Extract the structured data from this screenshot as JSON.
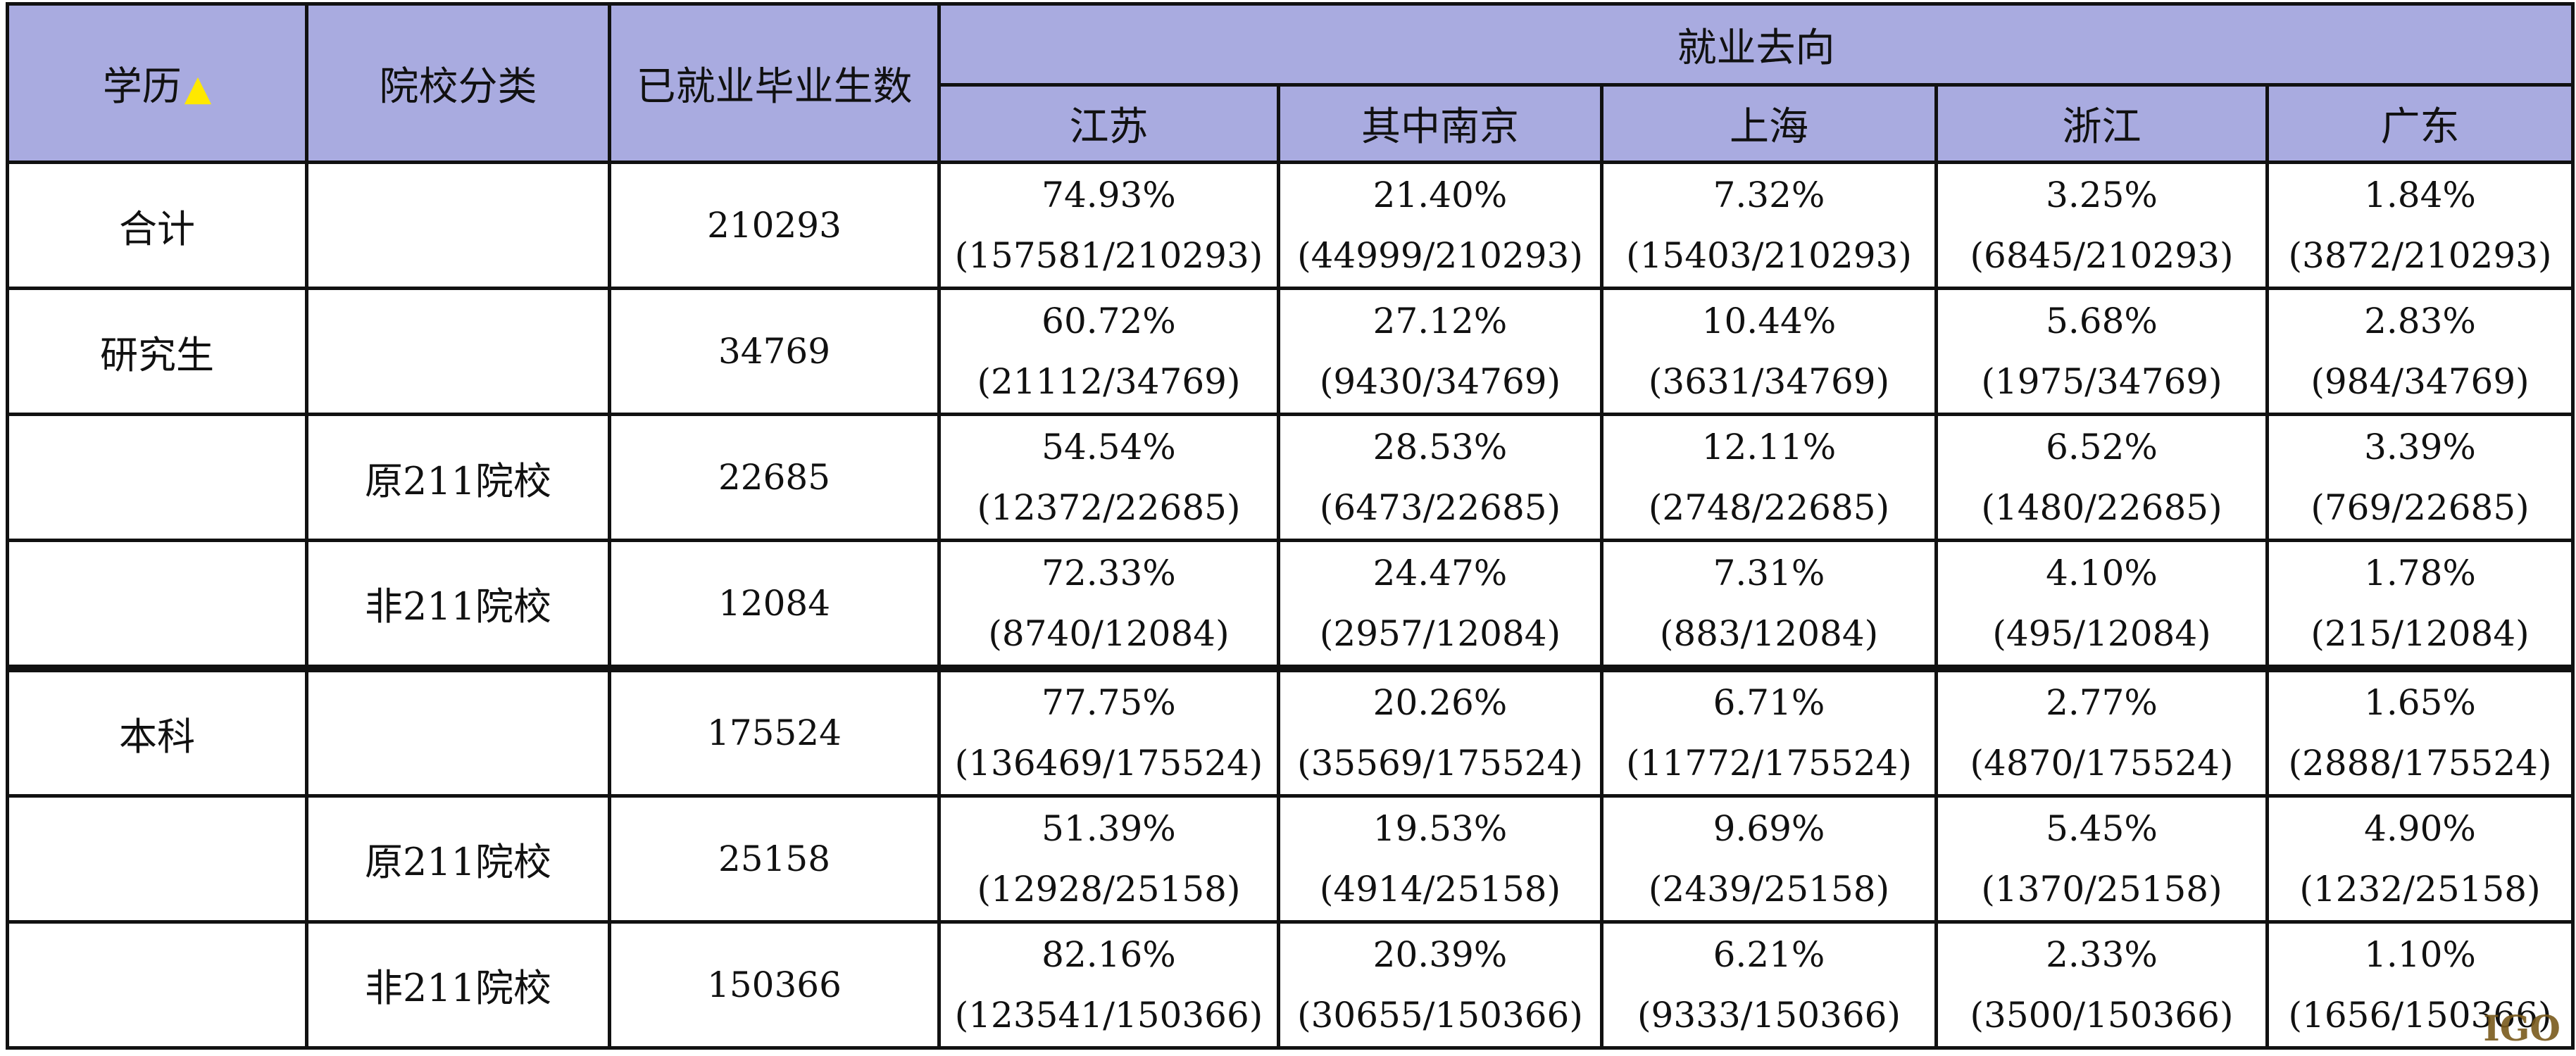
{
  "header": {
    "education": "学历",
    "education_marker": "▲",
    "school_type": "院校分类",
    "employed_count": "已就业毕业生数",
    "destination_group": "就业去向",
    "destinations": [
      "江苏",
      "其中南京",
      "上海",
      "浙江",
      "广东"
    ]
  },
  "rows": [
    {
      "education": "合计",
      "school_type": "",
      "count": "210293",
      "cells": [
        {
          "pct": "74.93%",
          "ratio": "(157581/210293)"
        },
        {
          "pct": "21.40%",
          "ratio": "(44999/210293)"
        },
        {
          "pct": "7.32%",
          "ratio": "(15403/210293)"
        },
        {
          "pct": "3.25%",
          "ratio": "(6845/210293)"
        },
        {
          "pct": "1.84%",
          "ratio": "(3872/210293)"
        }
      ]
    },
    {
      "education": "研究生",
      "school_type": "",
      "count": "34769",
      "cells": [
        {
          "pct": "60.72%",
          "ratio": "(21112/34769)"
        },
        {
          "pct": "27.12%",
          "ratio": "(9430/34769)"
        },
        {
          "pct": "10.44%",
          "ratio": "(3631/34769)"
        },
        {
          "pct": "5.68%",
          "ratio": "(1975/34769)"
        },
        {
          "pct": "2.83%",
          "ratio": "(984/34769)"
        }
      ]
    },
    {
      "education": "",
      "school_type": "原211院校",
      "count": "22685",
      "cells": [
        {
          "pct": "54.54%",
          "ratio": "(12372/22685)"
        },
        {
          "pct": "28.53%",
          "ratio": "(6473/22685)"
        },
        {
          "pct": "12.11%",
          "ratio": "(2748/22685)"
        },
        {
          "pct": "6.52%",
          "ratio": "(1480/22685)"
        },
        {
          "pct": "3.39%",
          "ratio": "(769/22685)"
        }
      ]
    },
    {
      "education": "",
      "school_type": "非211院校",
      "count": "12084",
      "cells": [
        {
          "pct": "72.33%",
          "ratio": "(8740/12084)"
        },
        {
          "pct": "24.47%",
          "ratio": "(2957/12084)"
        },
        {
          "pct": "7.31%",
          "ratio": "(883/12084)"
        },
        {
          "pct": "4.10%",
          "ratio": "(495/12084)"
        },
        {
          "pct": "1.78%",
          "ratio": "(215/12084)"
        }
      ]
    },
    {
      "education": "本科",
      "school_type": "",
      "count": "175524",
      "cells": [
        {
          "pct": "77.75%",
          "ratio": "(136469/175524)"
        },
        {
          "pct": "20.26%",
          "ratio": "(35569/175524)"
        },
        {
          "pct": "6.71%",
          "ratio": "(11772/175524)"
        },
        {
          "pct": "2.77%",
          "ratio": "(4870/175524)"
        },
        {
          "pct": "1.65%",
          "ratio": "(2888/175524)"
        }
      ]
    },
    {
      "education": "",
      "school_type": "原211院校",
      "count": "25158",
      "cells": [
        {
          "pct": "51.39%",
          "ratio": "(12928/25158)"
        },
        {
          "pct": "19.53%",
          "ratio": "(4914/25158)"
        },
        {
          "pct": "9.69%",
          "ratio": "(2439/25158)"
        },
        {
          "pct": "5.45%",
          "ratio": "(1370/25158)"
        },
        {
          "pct": "4.90%",
          "ratio": "(1232/25158)"
        }
      ]
    },
    {
      "education": "",
      "school_type": "非211院校",
      "count": "150366",
      "cells": [
        {
          "pct": "82.16%",
          "ratio": "(123541/150366)"
        },
        {
          "pct": "20.39%",
          "ratio": "(30655/150366)"
        },
        {
          "pct": "6.21%",
          "ratio": "(9333/150366)"
        },
        {
          "pct": "2.33%",
          "ratio": "(3500/150366)"
        },
        {
          "pct": "1.10%",
          "ratio": "(1656/150366)"
        }
      ]
    }
  ],
  "watermark": "IGO"
}
